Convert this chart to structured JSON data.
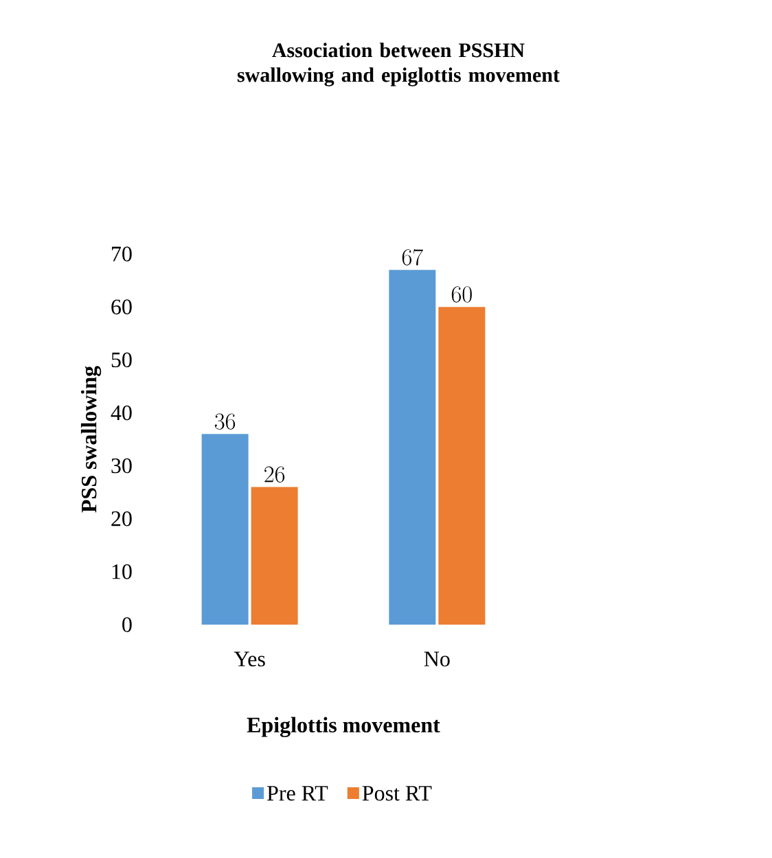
{
  "chart_data": {
    "type": "bar",
    "title": "Association between PSSHN swallowing and epiglottis movement",
    "xlabel": "Epiglottis movement",
    "ylabel": "PSS swallowing",
    "categories": [
      "Yes",
      "No"
    ],
    "series": [
      {
        "name": "Pre RT",
        "color": "#5b9bd5",
        "values": [
          36,
          67
        ]
      },
      {
        "name": "Post RT",
        "color": "#ed7d31",
        "values": [
          26,
          60
        ]
      }
    ],
    "ylim": [
      0,
      70
    ],
    "yticks": [
      0,
      10,
      20,
      30,
      40,
      50,
      60,
      70
    ],
    "data_labels": true,
    "legend": "bottom",
    "grid": false
  }
}
